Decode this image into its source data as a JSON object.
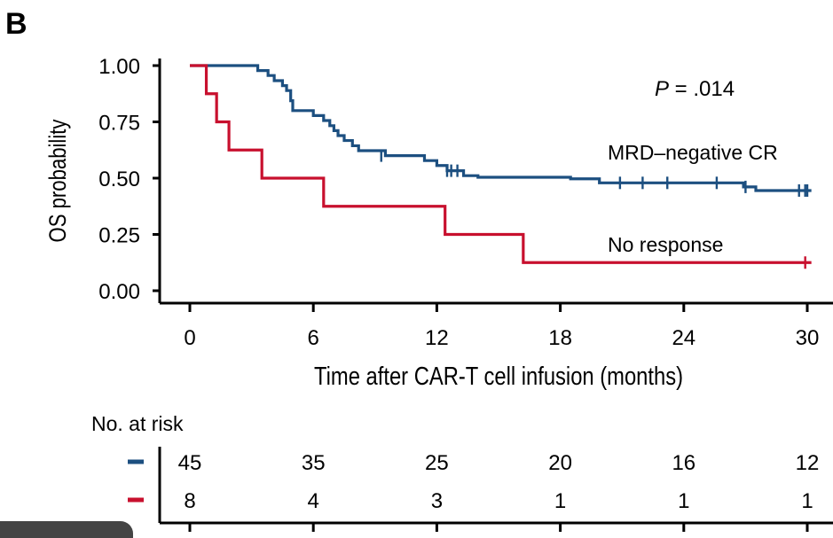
{
  "panel_label": "B",
  "chart_data": {
    "type": "line",
    "step": true,
    "title": "",
    "xlabel": "Time after CAR-T cell infusion (months)",
    "ylabel": "OS probability",
    "xlim": [
      0,
      30
    ],
    "ylim": [
      0,
      1
    ],
    "xticks": [
      0,
      6,
      12,
      18,
      24,
      30
    ],
    "yticks": [
      0.0,
      0.25,
      0.5,
      0.75,
      1.0
    ],
    "ytick_labels": [
      "0.00",
      "0.25",
      "0.50",
      "0.75",
      "1.00"
    ],
    "annotation": {
      "p_label": "P",
      "p_rest": " = .014"
    },
    "grid": false,
    "series": [
      {
        "name": "MRD–negative CR",
        "color": "#1c4f80",
        "steps": [
          [
            0,
            1.0
          ],
          [
            3.3,
            0.978
          ],
          [
            3.8,
            0.956
          ],
          [
            4.1,
            0.933
          ],
          [
            4.5,
            0.911
          ],
          [
            4.7,
            0.889
          ],
          [
            4.9,
            0.844
          ],
          [
            5.0,
            0.8
          ],
          [
            6.0,
            0.778
          ],
          [
            6.5,
            0.756
          ],
          [
            6.8,
            0.733
          ],
          [
            7.0,
            0.711
          ],
          [
            7.2,
            0.689
          ],
          [
            7.5,
            0.667
          ],
          [
            7.9,
            0.644
          ],
          [
            8.2,
            0.622
          ],
          [
            9.5,
            0.6
          ],
          [
            11.4,
            0.578
          ],
          [
            12.0,
            0.556
          ],
          [
            12.5,
            0.533
          ],
          [
            13.3,
            0.511
          ],
          [
            14.0,
            0.504
          ],
          [
            18.5,
            0.497
          ],
          [
            19.9,
            0.479
          ],
          [
            26.9,
            0.461
          ],
          [
            27.5,
            0.445
          ],
          [
            30.2,
            0.445
          ]
        ],
        "censors": [
          [
            9.3,
            0.6
          ],
          [
            12.5,
            0.533
          ],
          [
            12.7,
            0.533
          ],
          [
            13.0,
            0.533
          ],
          [
            20.9,
            0.479
          ],
          [
            22.0,
            0.479
          ],
          [
            23.2,
            0.479
          ],
          [
            25.6,
            0.479
          ],
          [
            27.0,
            0.461
          ],
          [
            29.6,
            0.445
          ],
          [
            29.9,
            0.445
          ],
          [
            30.0,
            0.445
          ]
        ]
      },
      {
        "name": "No response",
        "color": "#c8102e",
        "steps": [
          [
            0,
            1.0
          ],
          [
            0.8,
            0.875
          ],
          [
            1.3,
            0.75
          ],
          [
            1.9,
            0.625
          ],
          [
            3.5,
            0.5
          ],
          [
            6.5,
            0.375
          ],
          [
            12.4,
            0.25
          ],
          [
            16.2,
            0.125
          ],
          [
            30.2,
            0.125
          ]
        ],
        "censors": [
          [
            29.9,
            0.125
          ]
        ]
      }
    ]
  },
  "risk_table": {
    "title": "No. at risk",
    "times": [
      0,
      6,
      12,
      18,
      24,
      30
    ],
    "rows": [
      {
        "color": "#1c4f80",
        "values": [
          "45",
          "35",
          "25",
          "20",
          "16",
          "12"
        ]
      },
      {
        "color": "#c8102e",
        "values": [
          "8",
          "4",
          "3",
          "1",
          "1",
          "1"
        ]
      }
    ]
  }
}
